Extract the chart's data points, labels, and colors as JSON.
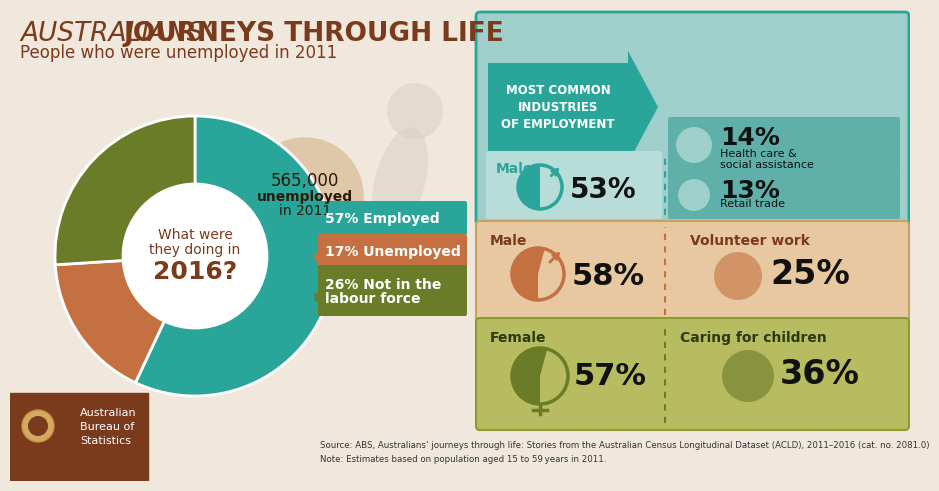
{
  "title_part1": "AUSTRALIANS’ ",
  "title_part2": "JOURNEYS THROUGH LIFE",
  "subtitle": "People who were unemployed in 2011",
  "bg_color": "#f0e8dc",
  "donut_values": [
    57,
    17,
    26
  ],
  "donut_colors": [
    "#2aa59a",
    "#c47040",
    "#6b7c28"
  ],
  "donut_center_line1": "What were",
  "donut_center_line2": "they doing in",
  "donut_center_year": "2016?",
  "donut_note_number": "565,000",
  "donut_note_text1": "unemployed",
  "donut_note_text2": "in 2011",
  "donut_note_bg": "#dfc8aa",
  "label_employed": "57%",
  "label_employed2": "Employed",
  "label_unemployed": "17%",
  "label_unemployed2": "Unemployed",
  "label_notlabour1": "26%",
  "label_notlabour2": "Not in the",
  "label_notlabour3": "labour force",
  "top_box_bg": "#9ecfca",
  "top_box_border": "#2aa59a",
  "arrow_color": "#2aa59a",
  "top_box_title": "MOST COMMON\nINDUSTRIES\nOF EMPLOYMENT",
  "top_left_sub_bg": "#b8ddd9",
  "top_left_male_label": "Male",
  "top_left_male_pct": "53%",
  "top_right_sub_bg": "#5eb0a8",
  "top_right1_pct": "14%",
  "top_right1_label1": "Health care &",
  "top_right1_label2": "social assistance",
  "top_right2_pct": "13%",
  "top_right2_label": "Retail trade",
  "mid_box_bg": "#e8c8a0",
  "mid_box_border": "#c47040",
  "mid_male_label": "Male",
  "mid_male_pct": "58%",
  "mid_right_label": "Volunteer work",
  "mid_right_pct": "25%",
  "bot_box_bg": "#b8bc60",
  "bot_box_border": "#6b7c28",
  "bot_female_label": "Female",
  "bot_female_pct": "57%",
  "bot_right_label": "Caring for children",
  "bot_right_pct": "36%",
  "source_text": "Source: ABS, Australians’ journeys through life: Stories from the Australian Census Longitudinal Dataset (ACLD), 2011–2016 (cat. no. 2081.0)",
  "note_text": "Note: Estimates based on population aged 15 to 59 years in 2011.",
  "brown_dark": "#7a3a1c",
  "teal_dark": "#2aa59a",
  "orange_dark": "#c47040",
  "olive_dark": "#6b7c28",
  "abs_bg": "#7a3a1c"
}
